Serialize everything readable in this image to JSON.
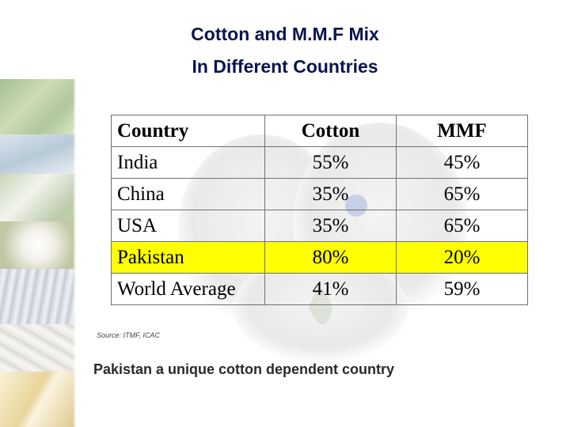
{
  "title": {
    "line1": "Cotton and M.M.F Mix",
    "line2": "In Different Countries"
  },
  "table": {
    "headers": [
      "Country",
      "Cotton",
      "MMF"
    ],
    "rows": [
      {
        "country": "India",
        "cotton": "55%",
        "mmf": "45%",
        "highlight": false
      },
      {
        "country": "China",
        "cotton": "35%",
        "mmf": "65%",
        "highlight": false
      },
      {
        "country": "USA",
        "cotton": "35%",
        "mmf": "65%",
        "highlight": false
      },
      {
        "country": "Pakistan",
        "cotton": "80%",
        "mmf": "20%",
        "highlight": true
      },
      {
        "country": "World Average",
        "cotton": "41%",
        "mmf": "59%",
        "highlight": false
      }
    ],
    "highlight_color": "#ffff00"
  },
  "source": "Source: ITMF, ICAC",
  "tagline": "Pakistan a unique cotton dependent country",
  "colors": {
    "title": "#0a1450",
    "tagline": "#2a2a2a"
  },
  "decor": {
    "left_strip": "cotton-field-photo-strip",
    "background": "cotton-boll-watermark"
  }
}
